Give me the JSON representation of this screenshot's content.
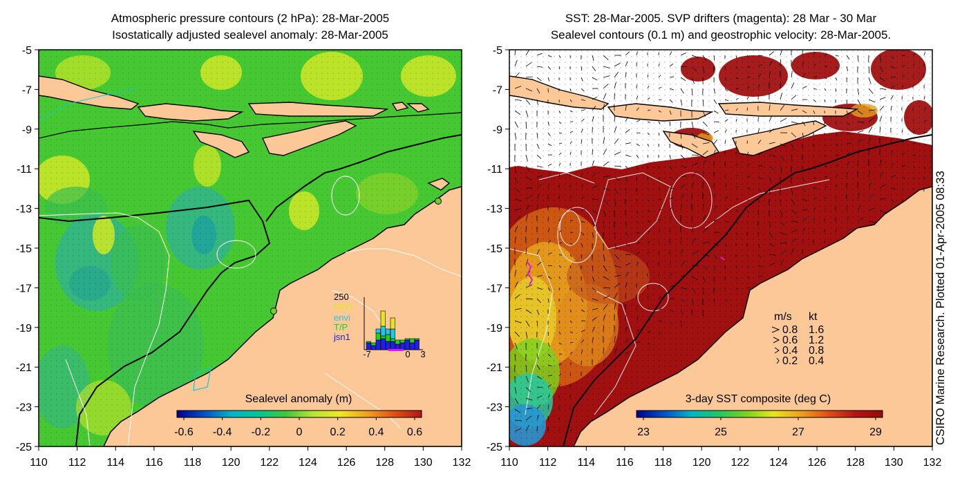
{
  "left_panel": {
    "title_line1": "Atmospheric pressure contours (2 hPa): 28-Mar-2005",
    "title_line2": "Isostatically adjusted sealevel anomaly: 28-Mar-2005",
    "colorbar_title": "Sealevel anomaly (m)",
    "colorbar_ticks": [
      "-0.6",
      "-0.4",
      "-0.2",
      "0",
      "0.2",
      "0.4",
      "0.6"
    ],
    "colorbar_colors": [
      "#00008c",
      "#0050c8",
      "#00b4c8",
      "#00c896",
      "#3cc83c",
      "#b4e632",
      "#f0e628",
      "#f0a01e",
      "#e05014",
      "#b41414"
    ],
    "inset": {
      "ymax_label": "250",
      "legend": [
        {
          "label": "GFO",
          "color": "#e6e61e"
        },
        {
          "label": "envi",
          "color": "#1ec8e6"
        },
        {
          "label": "T/P",
          "color": "#1ed21e"
        },
        {
          "label": "jsn1",
          "color": "#1e1ee6"
        }
      ],
      "x_labels": [
        "-7",
        "0",
        "3"
      ]
    }
  },
  "right_panel": {
    "title_line1": "SST: 28-Mar-2005. SVP drifters (magenta): 28 Mar - 30 Mar",
    "title_line2": "Sealevel contours (0.1 m) and geostrophic velocity: 28-Mar-2005.",
    "colorbar_title": "3-day SST composite (deg C)",
    "colorbar_ticks": [
      "23",
      "25",
      "27",
      "29"
    ],
    "colorbar_colors": [
      "#00008c",
      "#0050c8",
      "#00b4c8",
      "#1ec864",
      "#78d21e",
      "#e6e61e",
      "#f0a01e",
      "#e05014",
      "#b41414",
      "#960a0a"
    ],
    "velocity_legend": {
      "header_ms": "m/s",
      "header_kt": "kt",
      "rows": [
        {
          "ms": "0.8",
          "kt": "1.6"
        },
        {
          "ms": "0.6",
          "kt": "1.2"
        },
        {
          "ms": "0.4",
          "kt": "0.8"
        },
        {
          "ms": "0.2",
          "kt": "0.4"
        }
      ]
    },
    "credit": "CSIRO Marine Research. Plotted 01-Apr-2005 08:33"
  },
  "axes": {
    "y_labels": [
      "-5",
      "-7",
      "-9",
      "-11",
      "-13",
      "-15",
      "-17",
      "-19",
      "-21",
      "-23",
      "-25"
    ],
    "x_labels": [
      "110",
      "112",
      "114",
      "116",
      "118",
      "120",
      "122",
      "124",
      "126",
      "128",
      "130",
      "132"
    ]
  },
  "colors": {
    "land": "#fcc898",
    "sea_green": "#46c832",
    "sea_yellow": "#c8e628",
    "sea_cyan": "#32b48c",
    "sst_red": "#a01010",
    "sst_orange": "#e08a1e",
    "drifter": "#e614e6"
  }
}
